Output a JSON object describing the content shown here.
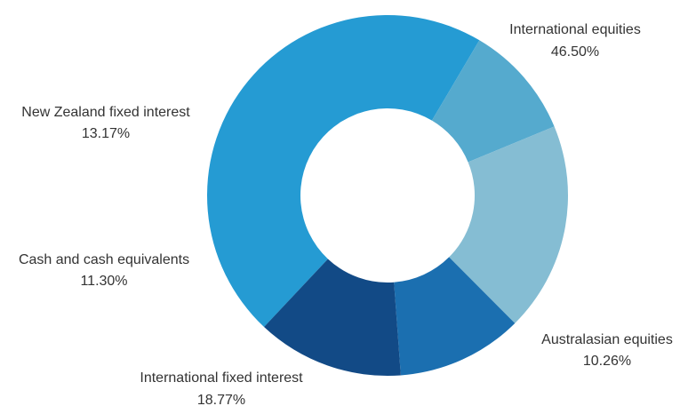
{
  "chart_data": {
    "type": "pie",
    "variant": "donut",
    "title": "",
    "slices": [
      {
        "label": "International equities",
        "value": 46.5,
        "value_label": "46.50%",
        "color": "#259BD3"
      },
      {
        "label": "Australasian equities",
        "value": 10.26,
        "value_label": "10.26%",
        "color": "#55AACE"
      },
      {
        "label": "International fixed interest",
        "value": 18.77,
        "value_label": "18.77%",
        "color": "#85BDD3"
      },
      {
        "label": "Cash and cash equivalents",
        "value": 11.3,
        "value_label": "11.30%",
        "color": "#1B6FB0"
      },
      {
        "label": "New Zealand fixed interest",
        "value": 13.17,
        "value_label": "13.17%",
        "color": "#124A86"
      }
    ],
    "legend": "none"
  }
}
